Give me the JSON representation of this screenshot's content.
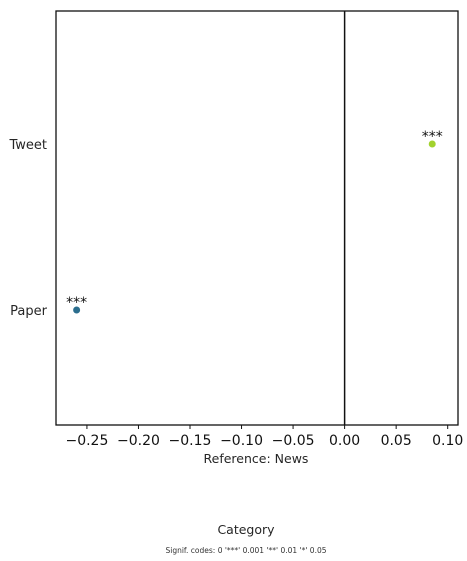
{
  "chart_data": {
    "type": "scatter",
    "xlabel": "Reference: News",
    "xlim": [
      -0.28,
      0.11
    ],
    "x_ticks": [
      -0.25,
      -0.2,
      -0.15,
      -0.1,
      -0.05,
      0.0,
      0.05,
      0.1
    ],
    "x_tick_labels": [
      "−0.25",
      "−0.20",
      "−0.15",
      "−0.10",
      "−0.05",
      "0.00",
      "0.05",
      "0.10"
    ],
    "categories": [
      "Tweet",
      "Paper"
    ],
    "reference_line_x": 0.0,
    "grid": false,
    "points": [
      {
        "category": "Tweet",
        "value": 0.085,
        "color": "#a2d22e",
        "sig": "***"
      },
      {
        "category": "Paper",
        "value": -0.26,
        "color": "#2b6e8e",
        "sig": "***"
      }
    ],
    "legend_title": "Category",
    "footnote": "Signif. codes:  0 '***' 0.001 '**' 0.01 '*' 0.05"
  }
}
